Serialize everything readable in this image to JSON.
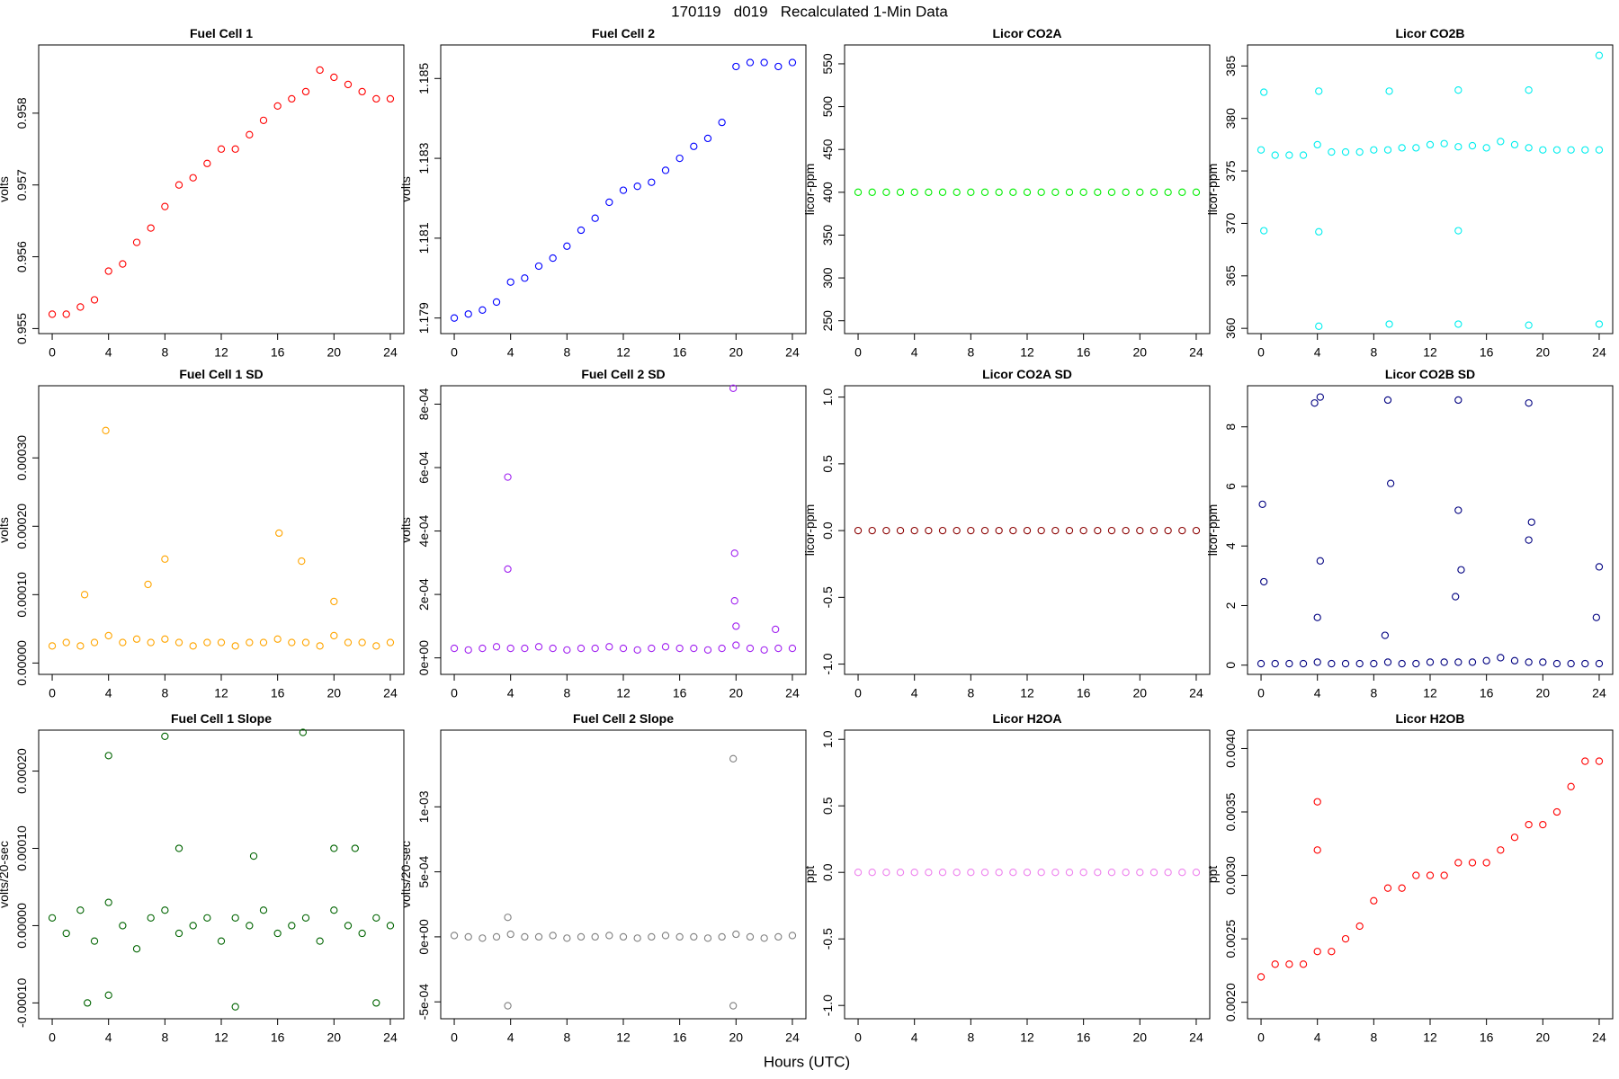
{
  "title": "170119   d019   Recalculated 1-Min Data",
  "x_label": "Hours (UTC)",
  "chart_data": [
    {
      "type": "scatter",
      "title": "Fuel Cell 1",
      "y_label": "volts",
      "color": "#ff0000",
      "x": [
        0,
        1,
        2,
        3,
        4,
        5,
        6,
        7,
        8,
        9,
        10,
        11,
        12,
        13,
        14,
        15,
        16,
        17,
        18,
        19,
        20,
        21,
        22,
        23,
        24
      ],
      "values": [
        0.9552,
        0.9552,
        0.9553,
        0.9554,
        0.9558,
        0.9559,
        0.9562,
        0.9564,
        0.9567,
        0.957,
        0.9571,
        0.9573,
        0.9575,
        0.9575,
        0.9577,
        0.9579,
        0.9581,
        0.9582,
        0.9583,
        0.9586,
        0.9585,
        0.9584,
        0.9583,
        0.9582,
        0.9582
      ],
      "xlim": [
        -0.96,
        24.96
      ],
      "xticks": [
        0,
        4,
        8,
        12,
        16,
        20,
        24
      ],
      "ylim": [
        0.95493,
        0.95895
      ],
      "yticks": [
        0.955,
        0.956,
        0.957,
        0.958
      ]
    },
    {
      "type": "scatter",
      "title": "Fuel Cell 2",
      "y_label": "volts",
      "color": "#0000ff",
      "x": [
        0,
        1,
        2,
        3,
        4,
        5,
        6,
        7,
        8,
        9,
        10,
        11,
        12,
        13,
        14,
        15,
        16,
        17,
        18,
        19,
        20,
        21,
        22,
        23,
        24
      ],
      "values": [
        1.179,
        1.1791,
        1.1792,
        1.1794,
        1.1799,
        1.18,
        1.1803,
        1.1805,
        1.1808,
        1.1812,
        1.1815,
        1.1819,
        1.1822,
        1.1823,
        1.1824,
        1.1827,
        1.183,
        1.1833,
        1.1835,
        1.1839,
        1.1853,
        1.1854,
        1.1854,
        1.1853,
        1.1854
      ],
      "xlim": [
        -0.96,
        24.96
      ],
      "xticks": [
        0,
        4,
        8,
        12,
        16,
        20,
        24
      ],
      "ylim": [
        1.17861,
        1.18584
      ],
      "yticks": [
        1.179,
        1.181,
        1.183,
        1.185
      ]
    },
    {
      "type": "scatter",
      "title": "Licor CO2A",
      "y_label": "licor-ppm",
      "color": "#00ee00",
      "x": [
        0,
        1,
        2,
        3,
        4,
        5,
        6,
        7,
        8,
        9,
        10,
        11,
        12,
        13,
        14,
        15,
        16,
        17,
        18,
        19,
        20,
        21,
        22,
        23,
        24
      ],
      "values": [
        400,
        400,
        400,
        400,
        400,
        400,
        400,
        400,
        400,
        400,
        400,
        400,
        400,
        400,
        400,
        400,
        400,
        400,
        400,
        400,
        400,
        400,
        400,
        400,
        400
      ],
      "xlim": [
        -0.96,
        24.96
      ],
      "xticks": [
        0,
        4,
        8,
        12,
        16,
        20,
        24
      ],
      "ylim": [
        235,
        572
      ],
      "yticks": [
        250,
        300,
        350,
        400,
        450,
        500,
        550
      ]
    },
    {
      "type": "scatter",
      "title": "Licor CO2B",
      "y_label": "licor-ppm",
      "color": "#00eeee",
      "x": [
        0,
        1,
        2,
        3,
        4,
        5,
        6,
        7,
        8,
        9,
        10,
        11,
        12,
        13,
        14,
        15,
        16,
        17,
        18,
        19,
        20,
        21,
        22,
        23,
        24,
        0.2,
        0.2,
        4.1,
        4.1,
        4.1,
        9.1,
        9.1,
        14,
        14,
        14,
        19,
        19,
        24,
        24
      ],
      "values": [
        377,
        376.5,
        376.5,
        376.5,
        377.5,
        376.8,
        376.8,
        376.8,
        377,
        377,
        377.2,
        377.2,
        377.5,
        377.6,
        377.3,
        377.4,
        377.2,
        377.8,
        377.5,
        377.2,
        377,
        377,
        377,
        377,
        377,
        382.5,
        369.3,
        382.6,
        369.2,
        360.2,
        382.6,
        360.4,
        382.7,
        369.3,
        360.4,
        382.7,
        360.3,
        386,
        360.4
      ],
      "xlim": [
        -0.96,
        24.96
      ],
      "xticks": [
        0,
        4,
        8,
        12,
        16,
        20,
        24
      ],
      "ylim": [
        359.5,
        387
      ],
      "yticks": [
        360,
        365,
        370,
        375,
        380,
        385
      ]
    },
    {
      "type": "scatter",
      "title": "Fuel Cell 1 SD",
      "y_label": "volts",
      "color": "#ffa500",
      "x": [
        0,
        1,
        2,
        3,
        4,
        5,
        6,
        7,
        8,
        9,
        10,
        11,
        12,
        13,
        14,
        15,
        16,
        17,
        18,
        19,
        20,
        21,
        22,
        23,
        24,
        3.8,
        16.1,
        8,
        17.7,
        2.3,
        6.8,
        20
      ],
      "values": [
        2.5e-05,
        3e-05,
        2.5e-05,
        3e-05,
        4e-05,
        3e-05,
        3.5e-05,
        3e-05,
        3.5e-05,
        3e-05,
        2.5e-05,
        3e-05,
        3e-05,
        2.5e-05,
        3e-05,
        3e-05,
        3.5e-05,
        3e-05,
        3e-05,
        2.5e-05,
        4e-05,
        3e-05,
        3e-05,
        2.5e-05,
        3e-05,
        0.00034,
        0.00019,
        0.000152,
        0.000149,
        0.0001,
        0.000115,
        9e-05
      ],
      "xlim": [
        -0.96,
        24.96
      ],
      "xticks": [
        0,
        4,
        8,
        12,
        16,
        20,
        24
      ],
      "ylim": [
        -1.66e-05,
        0.0004055
      ],
      "yticks": [
        {
          "value": 0,
          "label": "0.00000"
        },
        {
          "value": 0.0001,
          "label": "0.00010"
        },
        {
          "value": 0.0002,
          "label": "0.00020"
        },
        {
          "value": 0.0003,
          "label": "0.00030"
        }
      ]
    },
    {
      "type": "scatter",
      "title": "Fuel Cell 2 SD",
      "y_label": "volts",
      "color": "#a020f0",
      "x": [
        0,
        1,
        2,
        3,
        4,
        5,
        6,
        7,
        8,
        9,
        10,
        11,
        12,
        13,
        14,
        15,
        16,
        17,
        18,
        19,
        20,
        21,
        22,
        23,
        24,
        3.8,
        3.8,
        19.8,
        19.9,
        19.9,
        20,
        22.8
      ],
      "values": [
        3e-05,
        2.5e-05,
        3e-05,
        3.5e-05,
        3e-05,
        3e-05,
        3.5e-05,
        3e-05,
        2.5e-05,
        3e-05,
        3e-05,
        3.5e-05,
        3e-05,
        2.5e-05,
        3e-05,
        3.5e-05,
        3e-05,
        3e-05,
        2.5e-05,
        3e-05,
        4e-05,
        3e-05,
        2.5e-05,
        3e-05,
        3e-05,
        0.00057,
        0.00028,
        0.00085,
        0.00033,
        0.00018,
        0.0001,
        9e-05
      ],
      "xlim": [
        -0.96,
        24.96
      ],
      "xticks": [
        0,
        4,
        8,
        12,
        16,
        20,
        24
      ],
      "ylim": [
        -5.2e-05,
        0.000858
      ],
      "yticks": [
        {
          "value": 0,
          "label": "0e+00"
        },
        {
          "value": 0.0002,
          "label": "2e-04"
        },
        {
          "value": 0.0004,
          "label": "4e-04"
        },
        {
          "value": 0.0006,
          "label": "6e-04"
        },
        {
          "value": 0.0008,
          "label": "8e-04"
        }
      ]
    },
    {
      "type": "scatter",
      "title": "Licor CO2A SD",
      "y_label": "licor-ppm",
      "color": "#8b0000",
      "x": [
        0,
        1,
        2,
        3,
        4,
        5,
        6,
        7,
        8,
        9,
        10,
        11,
        12,
        13,
        14,
        15,
        16,
        17,
        18,
        19,
        20,
        21,
        22,
        23,
        24
      ],
      "values": [
        0,
        0,
        0,
        0,
        0,
        0,
        0,
        0,
        0,
        0,
        0,
        0,
        0,
        0,
        0,
        0,
        0,
        0,
        0,
        0,
        0,
        0,
        0,
        0,
        0
      ],
      "xlim": [
        -0.96,
        24.96
      ],
      "xticks": [
        0,
        4,
        8,
        12,
        16,
        20,
        24
      ],
      "ylim": [
        -1.077,
        1.085
      ],
      "yticks": [
        {
          "value": -1,
          "label": "-1.0"
        },
        {
          "value": -0.5,
          "label": "-0.5"
        },
        {
          "value": 0,
          "label": "0.0"
        },
        {
          "value": 0.5,
          "label": "0.5"
        },
        {
          "value": 1,
          "label": "1.0"
        }
      ]
    },
    {
      "type": "scatter",
      "title": "Licor CO2B SD",
      "y_label": "licor-ppm",
      "color": "#000080",
      "x": [
        0,
        1,
        2,
        3,
        4,
        5,
        6,
        7,
        8,
        9,
        10,
        11,
        12,
        13,
        14,
        15,
        16,
        17,
        18,
        19,
        20,
        21,
        22,
        23,
        24,
        0.1,
        0.2,
        3.8,
        4.2,
        4,
        4.2,
        9,
        9.2,
        8.8,
        14,
        14,
        13.8,
        14.2,
        19,
        19.2,
        19,
        24,
        23.8
      ],
      "values": [
        0.05,
        0.05,
        0.05,
        0.05,
        0.1,
        0.05,
        0.05,
        0.05,
        0.05,
        0.1,
        0.05,
        0.05,
        0.1,
        0.1,
        0.1,
        0.1,
        0.15,
        0.25,
        0.15,
        0.1,
        0.1,
        0.05,
        0.05,
        0.05,
        0.05,
        5.4,
        2.8,
        8.8,
        9,
        1.6,
        3.5,
        8.9,
        6.1,
        1,
        8.9,
        5.2,
        2.3,
        3.2,
        8.8,
        4.8,
        4.2,
        3.3,
        1.6
      ],
      "xlim": [
        -0.96,
        24.96
      ],
      "xticks": [
        0,
        4,
        8,
        12,
        16,
        20,
        24
      ],
      "ylim": [
        -0.31,
        9.38
      ],
      "yticks": [
        0,
        2,
        4,
        6,
        8
      ]
    },
    {
      "type": "scatter",
      "title": "Fuel Cell 1 Slope",
      "y_label": "volts/20-sec",
      "color": "#006400",
      "x": [
        0,
        1,
        2,
        3,
        4,
        5,
        6,
        7,
        8,
        9,
        10,
        11,
        12,
        13,
        14,
        15,
        16,
        17,
        18,
        19,
        20,
        21,
        22,
        23,
        24,
        4,
        8,
        17.8,
        9,
        14.3,
        20,
        21.5,
        2.5,
        13,
        23,
        4
      ],
      "values": [
        1e-05,
        -1e-05,
        2e-05,
        -2e-05,
        3e-05,
        0,
        -3e-05,
        1e-05,
        2e-05,
        -1e-05,
        0,
        1e-05,
        -2e-05,
        1e-05,
        0,
        2e-05,
        -1e-05,
        0,
        1e-05,
        -2e-05,
        2e-05,
        0,
        -1e-05,
        1e-05,
        0,
        0.00022,
        0.000245,
        0.00025,
        0.0001,
        9e-05,
        0.0001,
        0.0001,
        -0.0001,
        -0.000105,
        -0.0001,
        -9e-05
      ],
      "xlim": [
        -0.96,
        24.96
      ],
      "xticks": [
        0,
        4,
        8,
        12,
        16,
        20,
        24
      ],
      "ylim": [
        -0.0001205,
        0.000253
      ],
      "yticks": [
        {
          "value": -0.0001,
          "label": "-0.00010"
        },
        {
          "value": 0,
          "label": "0.00000"
        },
        {
          "value": 0.0001,
          "label": "0.00010"
        },
        {
          "value": 0.0002,
          "label": "0.00020"
        }
      ]
    },
    {
      "type": "scatter",
      "title": "Fuel Cell 2 Slope",
      "y_label": "volts/20-sec",
      "color": "#808080",
      "x": [
        0,
        1,
        2,
        3,
        4,
        5,
        6,
        7,
        8,
        9,
        10,
        11,
        12,
        13,
        14,
        15,
        16,
        17,
        18,
        19,
        20,
        21,
        22,
        23,
        24,
        19.8,
        3.8,
        19.8,
        3.8
      ],
      "values": [
        1e-05,
        0,
        -1e-05,
        0,
        2e-05,
        0,
        0,
        1e-05,
        -1e-05,
        0,
        0,
        1e-05,
        0,
        -1e-05,
        0,
        1e-05,
        0,
        0,
        -1e-05,
        0,
        2e-05,
        0,
        -1e-05,
        0,
        1e-05,
        0.00137,
        -0.00053,
        -0.00053,
        0.00015
      ],
      "xlim": [
        -0.96,
        24.96
      ],
      "xticks": [
        0,
        4,
        8,
        12,
        16,
        20,
        24
      ],
      "ylim": [
        -0.00063,
        0.00159
      ],
      "yticks": [
        {
          "value": -0.0005,
          "label": "-5e-04"
        },
        {
          "value": 0,
          "label": "0e+00"
        },
        {
          "value": 0.0005,
          "label": "5e-04"
        },
        {
          "value": 0.001,
          "label": "1e-03"
        }
      ]
    },
    {
      "type": "scatter",
      "title": "Licor H2OA",
      "y_label": "ppt",
      "color": "#ee82ee",
      "x": [
        0,
        1,
        2,
        3,
        4,
        5,
        6,
        7,
        8,
        9,
        10,
        11,
        12,
        13,
        14,
        15,
        16,
        17,
        18,
        19,
        20,
        21,
        22,
        23,
        24
      ],
      "values": [
        0,
        0,
        0,
        0,
        0,
        0,
        0,
        0,
        0,
        0,
        0,
        0,
        0,
        0,
        0,
        0,
        0,
        0,
        0,
        0,
        0,
        0,
        0,
        0,
        0
      ],
      "xlim": [
        -0.96,
        24.96
      ],
      "xticks": [
        0,
        4,
        8,
        12,
        16,
        20,
        24
      ],
      "ylim": [
        -1.1,
        1.069
      ],
      "yticks": [
        {
          "value": -1,
          "label": "-1.0"
        },
        {
          "value": -0.5,
          "label": "-0.5"
        },
        {
          "value": 0,
          "label": "0.0"
        },
        {
          "value": 0.5,
          "label": "0.5"
        },
        {
          "value": 1,
          "label": "1.0"
        }
      ]
    },
    {
      "type": "scatter",
      "title": "Licor H2OB",
      "y_label": "ppt",
      "color": "#ff0000",
      "x": [
        0,
        1,
        2,
        3,
        4,
        5,
        6,
        7,
        8,
        9,
        10,
        11,
        12,
        13,
        14,
        15,
        16,
        17,
        18,
        19,
        20,
        21,
        22,
        23,
        24,
        4,
        4
      ],
      "values": [
        0.0022,
        0.0023,
        0.0023,
        0.0023,
        0.0024,
        0.0024,
        0.0025,
        0.0026,
        0.0028,
        0.0029,
        0.0029,
        0.003,
        0.003,
        0.003,
        0.0031,
        0.0031,
        0.0031,
        0.0032,
        0.0033,
        0.0034,
        0.0034,
        0.0035,
        0.0037,
        0.0039,
        0.0039,
        0.00358,
        0.0032
      ],
      "xlim": [
        -0.96,
        24.96
      ],
      "xticks": [
        0,
        4,
        8,
        12,
        16,
        20,
        24
      ],
      "ylim": [
        0.00187,
        0.004145
      ],
      "yticks": [
        {
          "value": 0.002,
          "label": "0.0020"
        },
        {
          "value": 0.0025,
          "label": "0.0025"
        },
        {
          "value": 0.003,
          "label": "0.0030"
        },
        {
          "value": 0.0035,
          "label": "0.0035"
        },
        {
          "value": 0.004,
          "label": "0.0040"
        }
      ]
    }
  ]
}
